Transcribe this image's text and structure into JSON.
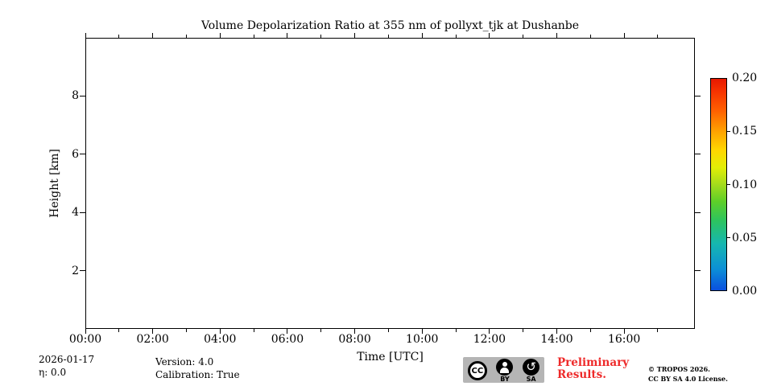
{
  "title": "Volume Depolarization Ratio at 355 nm of pollyxt_tjk at Dushanbe",
  "axes": {
    "xlabel": "Time [UTC]",
    "ylabel": "Height [km]"
  },
  "annotations": {
    "date": "2026-01-17",
    "eta": "η: 0.0",
    "version": "Version: 4.0",
    "calibration": "Calibration: True"
  },
  "watermark": {
    "line1": "Preliminary",
    "line2": "Results."
  },
  "copyright": {
    "line1": "© TROPOS 2026.",
    "line2": "CC BY SA 4.0 License."
  },
  "cc_badge": {
    "cc": "CC",
    "by": "BY",
    "sa": "SA"
  },
  "colors": {
    "axis": "#000000",
    "background": "#ffffff",
    "preliminary_red": "#ee2a2a",
    "badge_bg": "#b5b5b5"
  },
  "chart_data": {
    "type": "heatmap",
    "title": "Volume Depolarization Ratio at 355 nm of pollyxt_tjk at Dushanbe",
    "xlabel": "Time [UTC]",
    "ylabel": "Height [km]",
    "xlim_hours": [
      0,
      18.1
    ],
    "ylim_km": [
      0,
      10
    ],
    "grid": false,
    "x_major_ticks": [
      {
        "hours": 0,
        "label": "00:00"
      },
      {
        "hours": 2,
        "label": "02:00"
      },
      {
        "hours": 4,
        "label": "04:00"
      },
      {
        "hours": 6,
        "label": "06:00"
      },
      {
        "hours": 8,
        "label": "08:00"
      },
      {
        "hours": 10,
        "label": "10:00"
      },
      {
        "hours": 12,
        "label": "12:00"
      },
      {
        "hours": 14,
        "label": "14:00"
      },
      {
        "hours": 16,
        "label": "16:00"
      }
    ],
    "x_minor_hours": [
      1,
      3,
      5,
      7,
      9,
      11,
      13,
      15,
      17
    ],
    "y_major_ticks": [
      {
        "km": 2,
        "label": "2"
      },
      {
        "km": 4,
        "label": "4"
      },
      {
        "km": 6,
        "label": "6"
      },
      {
        "km": 8,
        "label": "8"
      }
    ],
    "values": [],
    "colorbar": {
      "min": 0.0,
      "max": 0.2,
      "tick_labels": [
        {
          "value": 0.2,
          "label": "0.20"
        },
        {
          "value": 0.15,
          "label": "0.15"
        },
        {
          "value": 0.1,
          "label": "0.10"
        },
        {
          "value": 0.05,
          "label": "0.05"
        },
        {
          "value": 0.0,
          "label": "0.00"
        }
      ],
      "marked_ticks": [
        0.05,
        0.1,
        0.15
      ],
      "gradient_stops": [
        {
          "at": 0.0,
          "color": "#0a50df"
        },
        {
          "at": 0.1,
          "color": "#0c8fd6"
        },
        {
          "at": 0.22,
          "color": "#16b7b0"
        },
        {
          "at": 0.33,
          "color": "#2dc45e"
        },
        {
          "at": 0.42,
          "color": "#5ecf28"
        },
        {
          "at": 0.5,
          "color": "#a4db1c"
        },
        {
          "at": 0.58,
          "color": "#e2ee06"
        },
        {
          "at": 0.66,
          "color": "#ffd800"
        },
        {
          "at": 0.75,
          "color": "#ffa300"
        },
        {
          "at": 0.85,
          "color": "#ff6000"
        },
        {
          "at": 0.94,
          "color": "#f63300"
        },
        {
          "at": 1.0,
          "color": "#e71800"
        }
      ]
    }
  }
}
